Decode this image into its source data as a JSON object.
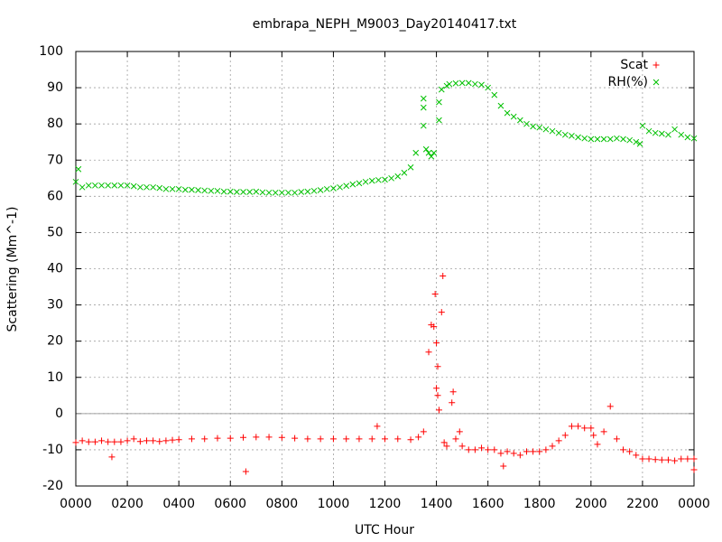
{
  "chart_data": {
    "type": "scatter",
    "title": "embrapa_NEPH_M9003_Day20140417.txt",
    "xlabel": "UTC Hour",
    "ylabel": "Scattering (Mm^-1)",
    "xlim": [
      0,
      24
    ],
    "ylim": [
      -20,
      100
    ],
    "xticks": [
      {
        "value": 0,
        "label": "0000"
      },
      {
        "value": 2,
        "label": "0200"
      },
      {
        "value": 4,
        "label": "0400"
      },
      {
        "value": 6,
        "label": "0600"
      },
      {
        "value": 8,
        "label": "0800"
      },
      {
        "value": 10,
        "label": "1000"
      },
      {
        "value": 12,
        "label": "1200"
      },
      {
        "value": 14,
        "label": "1400"
      },
      {
        "value": 16,
        "label": "1600"
      },
      {
        "value": 18,
        "label": "1800"
      },
      {
        "value": 20,
        "label": "2000"
      },
      {
        "value": 22,
        "label": "2200"
      },
      {
        "value": 24,
        "label": "0000"
      }
    ],
    "yticks": [
      -20,
      -10,
      0,
      10,
      20,
      30,
      40,
      50,
      60,
      70,
      80,
      90,
      100
    ],
    "grid": true,
    "legend": "top-right",
    "series": [
      {
        "name": "Scat",
        "color": "#ff0000",
        "marker": "plus",
        "x": [
          0,
          0.25,
          0.5,
          0.75,
          1,
          1.25,
          1.4,
          1.5,
          1.75,
          2,
          2.25,
          2.5,
          2.75,
          3,
          3.25,
          3.5,
          3.75,
          4,
          4.5,
          5,
          5.5,
          6,
          6.5,
          6.6,
          7,
          7.5,
          8,
          8.5,
          9,
          9.5,
          10,
          10.5,
          11,
          11.5,
          11.7,
          12,
          12.5,
          13,
          13.3,
          13.5,
          13.7,
          13.8,
          13.9,
          13.95,
          14,
          14.05,
          14,
          14.05,
          14.1,
          14.2,
          14.25,
          14.3,
          14.4,
          14.6,
          14.65,
          14.75,
          14.9,
          15,
          15.25,
          15.5,
          15.75,
          16,
          16.25,
          16.5,
          16.6,
          16.75,
          17,
          17.25,
          17.5,
          17.75,
          18,
          18.25,
          18.5,
          18.75,
          19,
          19.25,
          19.5,
          19.75,
          20,
          20.1,
          20.25,
          20.5,
          20.75,
          21,
          21.25,
          21.5,
          21.75,
          22,
          22.25,
          22.5,
          22.75,
          23,
          23.25,
          23.5,
          23.75,
          24,
          24
        ],
        "values": [
          -8,
          -7.5,
          -7.8,
          -7.8,
          -7.5,
          -7.8,
          -12,
          -7.8,
          -7.8,
          -7.5,
          -7,
          -7.7,
          -7.5,
          -7.5,
          -7.7,
          -7.5,
          -7.3,
          -7.2,
          -7,
          -7,
          -6.8,
          -6.8,
          -6.6,
          -16,
          -6.5,
          -6.5,
          -6.6,
          -6.8,
          -7,
          -7,
          -7,
          -7,
          -7,
          -7,
          -3.5,
          -7,
          -7,
          -7.2,
          -6.5,
          -5,
          17,
          24.5,
          24,
          33,
          19.5,
          13,
          7,
          5,
          1,
          28,
          38,
          -8,
          -9,
          3,
          6,
          -7,
          -5,
          -9,
          -10,
          -10,
          -9.5,
          -10,
          -10,
          -11,
          -14.5,
          -10.5,
          -11,
          -11.5,
          -10.5,
          -10.5,
          -10.5,
          -10,
          -9,
          -7.5,
          -6,
          -3.5,
          -3.5,
          -4,
          -4,
          -6,
          -8.5,
          -5,
          2,
          -7,
          -10,
          -10.5,
          -11.5,
          -12.5,
          -12.5,
          -12.7,
          -12.8,
          -12.8,
          -13,
          -12.5,
          -12.5,
          -12.5,
          -15.5
        ]
      },
      {
        "name": "RH(%)",
        "color": "#00c000",
        "marker": "cross",
        "x": [
          0,
          0.1,
          0.25,
          0.5,
          0.75,
          1,
          1.25,
          1.5,
          1.75,
          2,
          2.25,
          2.5,
          2.75,
          3,
          3.25,
          3.5,
          3.75,
          4,
          4.25,
          4.5,
          4.75,
          5,
          5.25,
          5.5,
          5.75,
          6,
          6.25,
          6.5,
          6.75,
          7,
          7.25,
          7.5,
          7.75,
          8,
          8.25,
          8.5,
          8.75,
          9,
          9.25,
          9.5,
          9.75,
          10,
          10.25,
          10.5,
          10.75,
          11,
          11.25,
          11.5,
          11.75,
          12,
          12.25,
          12.5,
          12.75,
          13,
          13.2,
          13.5,
          13.5,
          13.5,
          13.6,
          13.7,
          13.8,
          13.9,
          14.1,
          14.1,
          14.2,
          14.4,
          14.5,
          14.75,
          15,
          15.25,
          15.5,
          15.75,
          16,
          16.25,
          16.5,
          16.75,
          17,
          17.25,
          17.5,
          17.75,
          18,
          18.25,
          18.5,
          18.75,
          19,
          19.25,
          19.5,
          19.75,
          20,
          20.25,
          20.5,
          20.75,
          21,
          21.25,
          21.5,
          21.75,
          21.9,
          22,
          22.25,
          22.5,
          22.75,
          23,
          23.25,
          23.5,
          23.75,
          24
        ],
        "values": [
          64,
          67.5,
          62.5,
          63,
          63,
          63,
          63,
          63,
          63,
          63,
          62.8,
          62.5,
          62.5,
          62.5,
          62.3,
          62,
          62,
          62,
          61.8,
          61.8,
          61.7,
          61.6,
          61.5,
          61.5,
          61.3,
          61.3,
          61.2,
          61.2,
          61.2,
          61.3,
          61.1,
          61,
          61,
          61,
          61,
          61,
          61.2,
          61.3,
          61.5,
          61.7,
          62,
          62.2,
          62.5,
          62.9,
          63.3,
          63.6,
          64,
          64.3,
          64.5,
          64.6,
          65,
          65.5,
          66.5,
          68,
          72,
          87,
          84.5,
          79.5,
          73,
          72,
          71,
          72,
          81,
          86,
          89.5,
          90.5,
          91,
          91.2,
          91.3,
          91.3,
          91,
          90.8,
          90,
          88,
          85,
          83,
          82,
          81,
          80,
          79.3,
          79,
          78.5,
          78,
          77.5,
          77,
          76.7,
          76.3,
          76,
          75.8,
          75.8,
          75.8,
          75.8,
          76,
          75.8,
          75.5,
          75,
          74.5,
          79.5,
          78,
          77.5,
          77.3,
          77,
          78.5,
          77,
          76.3,
          76
        ]
      }
    ]
  }
}
